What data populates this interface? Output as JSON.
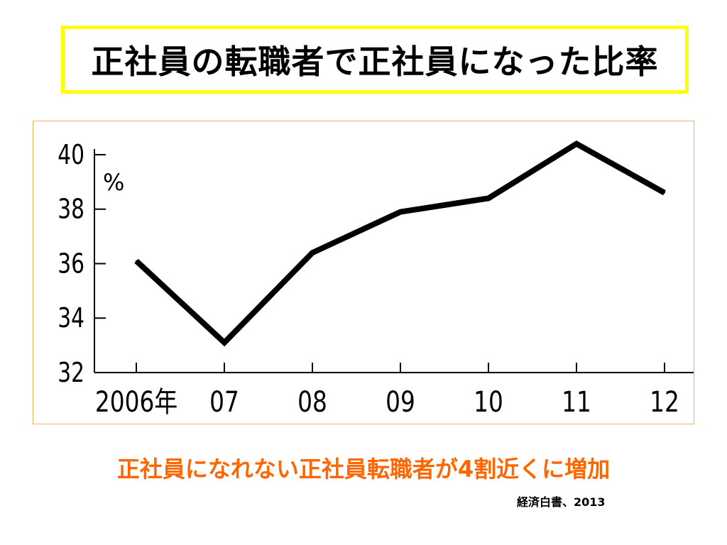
{
  "slide": {
    "title": "正社員の転職者で正社員になった比率",
    "conclusion": "正社員になれない正社員転職者が4割近くに増加",
    "source": "経済白書、2013"
  },
  "chart_data": {
    "type": "line",
    "ylabel": "%",
    "ylim": [
      32,
      40
    ],
    "yticks": [
      "32",
      "34",
      "36",
      "38",
      "40"
    ],
    "categories": [
      "2006年",
      "07",
      "08",
      "09",
      "10",
      "11",
      "12"
    ],
    "values": [
      36.1,
      33.1,
      36.4,
      37.9,
      38.4,
      40.4,
      38.6
    ],
    "grid": false,
    "line_color": "#000000"
  }
}
